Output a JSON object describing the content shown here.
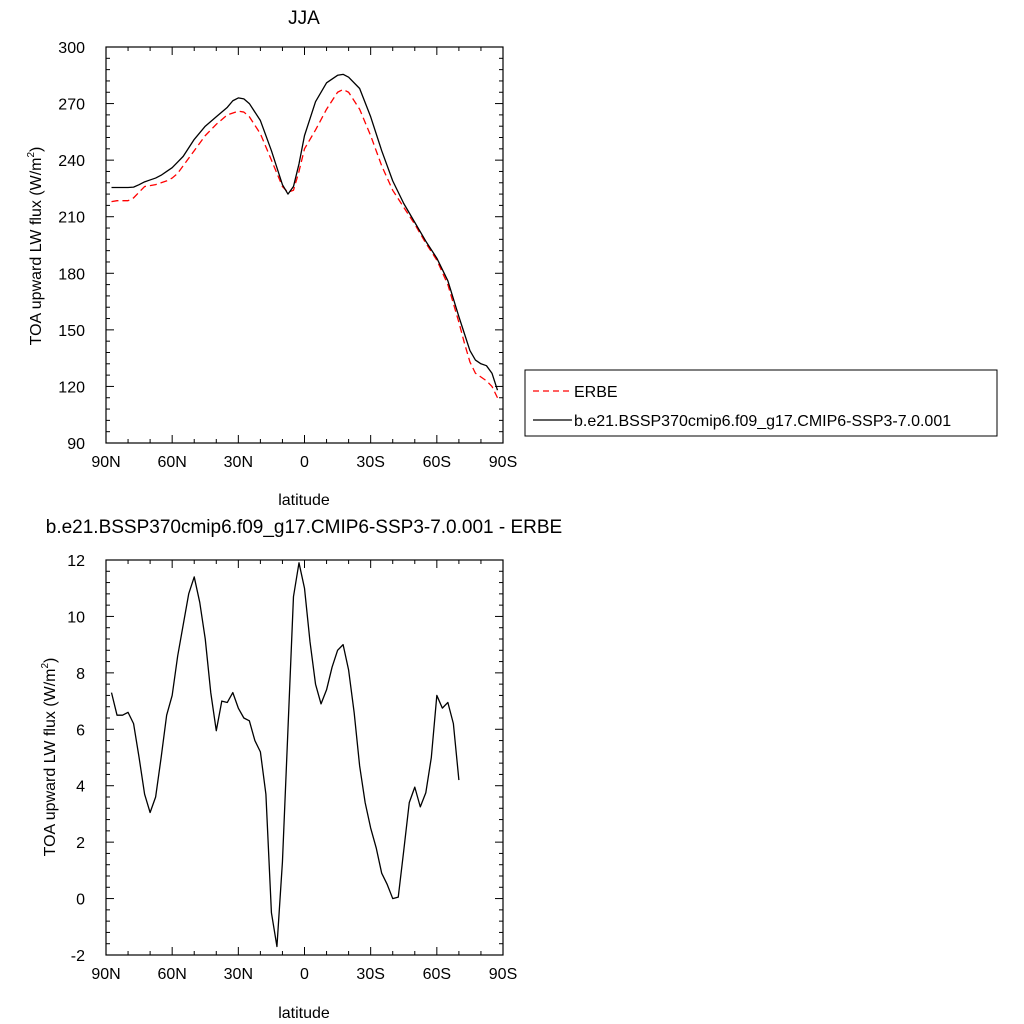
{
  "chart_data": [
    {
      "type": "line",
      "title": "JJA",
      "xlabel": "latitude",
      "ylabel": "TOA upward LW flux (W/m",
      "ylabel_sup": "2",
      "ylabel_close": ")",
      "xlim": [
        90,
        -90
      ],
      "ylim": [
        90,
        300
      ],
      "xticks": [
        90,
        60,
        30,
        0,
        -30,
        -60,
        -90
      ],
      "xtick_labels": [
        "90N",
        "60N",
        "30N",
        "0",
        "30S",
        "60S",
        "90S"
      ],
      "yticks": [
        90,
        120,
        150,
        180,
        210,
        240,
        270,
        300
      ],
      "ytick_labels": [
        "90",
        "120",
        "150",
        "180",
        "210",
        "240",
        "270",
        "300"
      ],
      "legend_position": "right",
      "series": [
        {
          "name": "ERBE",
          "color": "#ff0000",
          "dash": "dashed",
          "points": [
            [
              87.5,
              218
            ],
            [
              85,
              218.5
            ],
            [
              80,
              218.5
            ],
            [
              77.5,
              220
            ],
            [
              75,
              223
            ],
            [
              72.5,
              226
            ],
            [
              70,
              226.5
            ],
            [
              67.5,
              227
            ],
            [
              65,
              228
            ],
            [
              62.5,
              229
            ],
            [
              60,
              230.5
            ],
            [
              57.5,
              233
            ],
            [
              55,
              237
            ],
            [
              50,
              245
            ],
            [
              45,
              253
            ],
            [
              40,
              259
            ],
            [
              35,
              264
            ],
            [
              30,
              266
            ],
            [
              27.5,
              265.5
            ],
            [
              25,
              263
            ],
            [
              20,
              254
            ],
            [
              15,
              240
            ],
            [
              10,
              226
            ],
            [
              7.5,
              223
            ],
            [
              5,
              224
            ],
            [
              2.5,
              234
            ],
            [
              0,
              246
            ],
            [
              -5,
              256
            ],
            [
              -10,
              267
            ],
            [
              -15,
              276
            ],
            [
              -17.5,
              277.5
            ],
            [
              -20,
              276
            ],
            [
              -25,
              267
            ],
            [
              -30,
              253
            ],
            [
              -35,
              237
            ],
            [
              -40,
              224
            ],
            [
              -45,
              215
            ],
            [
              -50,
              206
            ],
            [
              -55,
              196
            ],
            [
              -60,
              187
            ],
            [
              -65,
              174
            ],
            [
              -70,
              154
            ],
            [
              -72.5,
              143
            ],
            [
              -75,
              133
            ],
            [
              -77.5,
              127
            ],
            [
              -80,
              125
            ],
            [
              -82.5,
              123
            ],
            [
              -85,
              120
            ],
            [
              -87.5,
              114
            ]
          ]
        },
        {
          "name": "b.e21.BSSP370cmip6.f09_g17.CMIP6-SSP3-7.0.001",
          "color": "#000000",
          "dash": "solid",
          "points": [
            [
              87.5,
              225.5
            ],
            [
              85,
              225.5
            ],
            [
              80,
              225.5
            ],
            [
              77.5,
              225.7
            ],
            [
              75,
              227
            ],
            [
              72.5,
              228.5
            ],
            [
              70,
              229.5
            ],
            [
              67.5,
              230.5
            ],
            [
              65,
              232
            ],
            [
              62.5,
              234
            ],
            [
              60,
              236
            ],
            [
              57.5,
              239
            ],
            [
              55,
              242
            ],
            [
              50,
              251
            ],
            [
              45,
              258
            ],
            [
              40,
              263
            ],
            [
              35,
              268
            ],
            [
              32.5,
              271.5
            ],
            [
              30,
              273
            ],
            [
              27.5,
              272.5
            ],
            [
              25,
              270
            ],
            [
              20,
              261
            ],
            [
              15,
              245
            ],
            [
              10,
              227
            ],
            [
              7.5,
              222
            ],
            [
              5,
              226
            ],
            [
              2.5,
              238
            ],
            [
              0,
              253
            ],
            [
              -5,
              271
            ],
            [
              -10,
              281
            ],
            [
              -15,
              285
            ],
            [
              -17.5,
              285.5
            ],
            [
              -20,
              284
            ],
            [
              -25,
              278
            ],
            [
              -30,
              263
            ],
            [
              -35,
              245
            ],
            [
              -40,
              229
            ],
            [
              -45,
              217
            ],
            [
              -50,
              207
            ],
            [
              -55,
              197
            ],
            [
              -60,
              188
            ],
            [
              -65,
              176
            ],
            [
              -70,
              157
            ],
            [
              -72.5,
              148
            ],
            [
              -75,
              139
            ],
            [
              -77.5,
              134
            ],
            [
              -80,
              132
            ],
            [
              -82.5,
              131
            ],
            [
              -85,
              127
            ],
            [
              -87.5,
              118
            ]
          ]
        }
      ]
    },
    {
      "type": "line",
      "title": "b.e21.BSSP370cmip6.f09_g17.CMIP6-SSP3-7.0.001 - ERBE",
      "xlabel": "latitude",
      "ylabel": "TOA upward LW flux (W/m",
      "ylabel_sup": "2",
      "ylabel_close": ")",
      "xlim": [
        90,
        -90
      ],
      "ylim": [
        -2,
        12
      ],
      "xticks": [
        90,
        60,
        30,
        0,
        -30,
        -60,
        -90
      ],
      "xtick_labels": [
        "90N",
        "60N",
        "30N",
        "0",
        "30S",
        "60S",
        "90S"
      ],
      "yticks": [
        -2,
        0,
        2,
        4,
        6,
        8,
        10,
        12
      ],
      "ytick_labels": [
        "-2",
        "0",
        "2",
        "4",
        "6",
        "8",
        "10",
        "12"
      ],
      "series": [
        {
          "color": "#000000",
          "dash": "solid",
          "points": [
            [
              87.5,
              7.3
            ],
            [
              85,
              6.5
            ],
            [
              82.5,
              6.5
            ],
            [
              80,
              6.6
            ],
            [
              77.5,
              6.2
            ],
            [
              75,
              5.0
            ],
            [
              72.5,
              3.7
            ],
            [
              70,
              3.05
            ],
            [
              67.5,
              3.6
            ],
            [
              65,
              5.0
            ],
            [
              62.5,
              6.5
            ],
            [
              60,
              7.2
            ],
            [
              57.5,
              8.6
            ],
            [
              55,
              9.7
            ],
            [
              52.5,
              10.8
            ],
            [
              50,
              11.4
            ],
            [
              47.5,
              10.5
            ],
            [
              45,
              9.2
            ],
            [
              42.5,
              7.3
            ],
            [
              40,
              5.95
            ],
            [
              37.5,
              7.0
            ],
            [
              35,
              6.95
            ],
            [
              32.5,
              7.3
            ],
            [
              30,
              6.75
            ],
            [
              27.5,
              6.4
            ],
            [
              25,
              6.3
            ],
            [
              22.5,
              5.6
            ],
            [
              20,
              5.2
            ],
            [
              17.5,
              3.7
            ],
            [
              15,
              -0.5
            ],
            [
              12.5,
              -1.7
            ],
            [
              10,
              1.3
            ],
            [
              7.5,
              6.0
            ],
            [
              5,
              10.7
            ],
            [
              2.5,
              11.9
            ],
            [
              0,
              11.0
            ],
            [
              -2.5,
              9.1
            ],
            [
              -5,
              7.6
            ],
            [
              -7.5,
              6.9
            ],
            [
              -10,
              7.4
            ],
            [
              -12.5,
              8.2
            ],
            [
              -15,
              8.8
            ],
            [
              -17.5,
              9.0
            ],
            [
              -20,
              8.1
            ],
            [
              -22.5,
              6.6
            ],
            [
              -25,
              4.7
            ],
            [
              -27.5,
              3.4
            ],
            [
              -30,
              2.5
            ],
            [
              -32.5,
              1.8
            ],
            [
              -35,
              0.9
            ],
            [
              -37.5,
              0.5
            ],
            [
              -40,
              0.0
            ],
            [
              -42.5,
              0.05
            ],
            [
              -45,
              1.7
            ],
            [
              -47.5,
              3.4
            ],
            [
              -50,
              3.95
            ],
            [
              -52.5,
              3.25
            ],
            [
              -55,
              3.75
            ],
            [
              -57.5,
              5.0
            ],
            [
              -60,
              7.2
            ],
            [
              -62.5,
              6.75
            ],
            [
              -65,
              6.95
            ],
            [
              -67.5,
              6.2
            ],
            [
              -70,
              4.2
            ]
          ]
        }
      ]
    }
  ]
}
